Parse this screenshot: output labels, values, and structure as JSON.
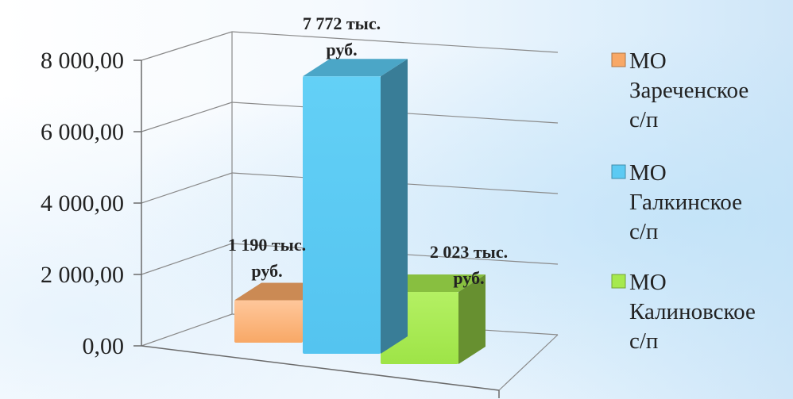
{
  "chart_data": {
    "type": "bar",
    "categories": [
      "МО Зареченское с/п",
      "МО Галкинское с/п",
      "МО Калиновское с/п"
    ],
    "values": [
      1190,
      7772,
      2023
    ],
    "data_labels": [
      [
        "1 190 тыс.",
        "руб."
      ],
      [
        "7 772 тыс.",
        "руб."
      ],
      [
        "2 023 тыс.",
        "руб."
      ]
    ],
    "yticks": [
      "0,00",
      "2 000,00",
      "4 000,00",
      "6 000,00",
      "8 000,00"
    ],
    "ylim": [
      0,
      8000
    ],
    "grid": true,
    "legend_position": "right",
    "colors": [
      "#f8a866",
      "#5ccaf3",
      "#a6e94e"
    ],
    "legend": [
      {
        "lines": [
          "МО",
          "Зареченское",
          "с/п"
        ]
      },
      {
        "lines": [
          "МО",
          "Галкинское",
          "с/п"
        ]
      },
      {
        "lines": [
          "МО",
          "Калиновское",
          "с/п"
        ]
      }
    ]
  }
}
